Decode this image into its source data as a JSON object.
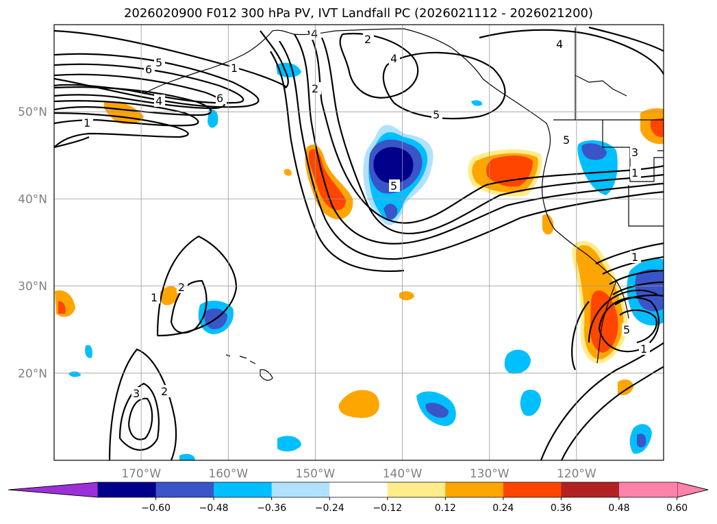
{
  "title": "2026020900 F012 300 hPa PV, IVT Landfall PC (2026021112 - 2026021200)",
  "map": {
    "lon_range": [
      -180,
      -110
    ],
    "lat_range": [
      10,
      60
    ],
    "lon_ticks": [
      {
        "value": -170,
        "label": "170°W"
      },
      {
        "value": -160,
        "label": "160°W"
      },
      {
        "value": -150,
        "label": "150°W"
      },
      {
        "value": -140,
        "label": "140°W"
      },
      {
        "value": -130,
        "label": "130°W"
      },
      {
        "value": -120,
        "label": "120°W"
      }
    ],
    "lat_ticks": [
      {
        "value": 50,
        "label": "50°N"
      },
      {
        "value": 40,
        "label": "40°N"
      },
      {
        "value": 30,
        "label": "30°N"
      },
      {
        "value": 20,
        "label": "20°N"
      }
    ],
    "grid": true
  },
  "colorbar": {
    "extend": "both",
    "colors": [
      "#9b30d9",
      "#00008b",
      "#3a55c8",
      "#00bfff",
      "#b0e2ff",
      "#ffffff",
      "#ffec8b",
      "#ffa500",
      "#ff4500",
      "#b22222",
      "#ff82ab"
    ],
    "ticks": [
      "−0.60",
      "−0.48",
      "−0.36",
      "−0.24",
      "−0.12",
      "0.12",
      "0.24",
      "0.36",
      "0.48",
      "0.60"
    ]
  },
  "contour_labels": [
    "1",
    "2",
    "3",
    "4",
    "5",
    "6"
  ]
}
